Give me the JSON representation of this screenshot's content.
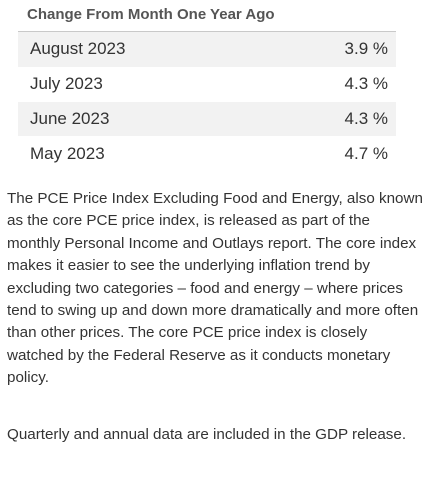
{
  "table": {
    "header": "Change From Month One Year Ago",
    "rows": [
      {
        "month": "August 2023",
        "value": "3.9 %"
      },
      {
        "month": "July 2023",
        "value": "4.3 %"
      },
      {
        "month": "June 2023",
        "value": "4.3 %"
      },
      {
        "month": "May 2023",
        "value": "4.7 %"
      }
    ]
  },
  "paragraphs": {
    "description": "The PCE Price Index Excluding Food and Energy, also known as the core PCE price index, is released as part of the monthly Personal Income and Outlays report. The core index makes it easier to see the underlying inflation trend by excluding two categories – food and energy – where prices tend to swing up and down more dramatically and more often than other prices. The core PCE price index is closely watched by the Federal Reserve as it conducts monetary policy.",
    "note": "Quarterly and annual data are included in the GDP release."
  }
}
